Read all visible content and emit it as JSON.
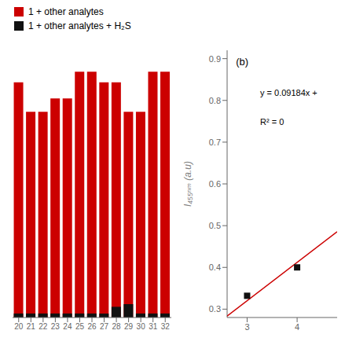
{
  "chart_data": [
    {
      "type": "bar",
      "categories": [
        20,
        21,
        22,
        23,
        24,
        25,
        26,
        27,
        28,
        29,
        30,
        31,
        32
      ],
      "series": [
        {
          "name": "1 + other analytes",
          "color": "#cc0000",
          "values": [
            0.88,
            0.77,
            0.77,
            0.82,
            0.82,
            0.92,
            0.92,
            0.88,
            0.88,
            0.77,
            0.77,
            0.92,
            0.92
          ]
        },
        {
          "name": "1 + other analytes + H₂S",
          "color": "#111111",
          "values": [
            0.015,
            0.015,
            0.015,
            0.015,
            0.015,
            0.015,
            0.015,
            0.015,
            0.04,
            0.05,
            0.015,
            0.015,
            0.015
          ]
        }
      ],
      "ylim": [
        0,
        1.0
      ],
      "tick_labels": "x",
      "legend": "upper left",
      "grid": false
    },
    {
      "type": "scatter",
      "series": [
        {
          "type": "line",
          "color": "#cc0000",
          "x": [
            2.6,
            4.8
          ],
          "values": [
            0.283344,
            0.485392
          ]
        },
        {
          "type": "scatter",
          "color": "#111111",
          "marker": "square",
          "x": [
            3,
            4
          ],
          "values": [
            0.332,
            0.4
          ]
        }
      ],
      "xlim": [
        2.6,
        4.8
      ],
      "xticks": [
        3,
        4
      ],
      "ylim": [
        0.28,
        0.92
      ],
      "yticks": [
        0.3,
        0.4,
        0.5,
        0.6,
        0.7,
        0.8,
        0.9
      ],
      "y_label": "I₄₅₅ₙₘ (a.u)",
      "annotations": [
        "(b)",
        "y = 0.09184x +",
        "R² = 0"
      ],
      "grid": false
    }
  ]
}
